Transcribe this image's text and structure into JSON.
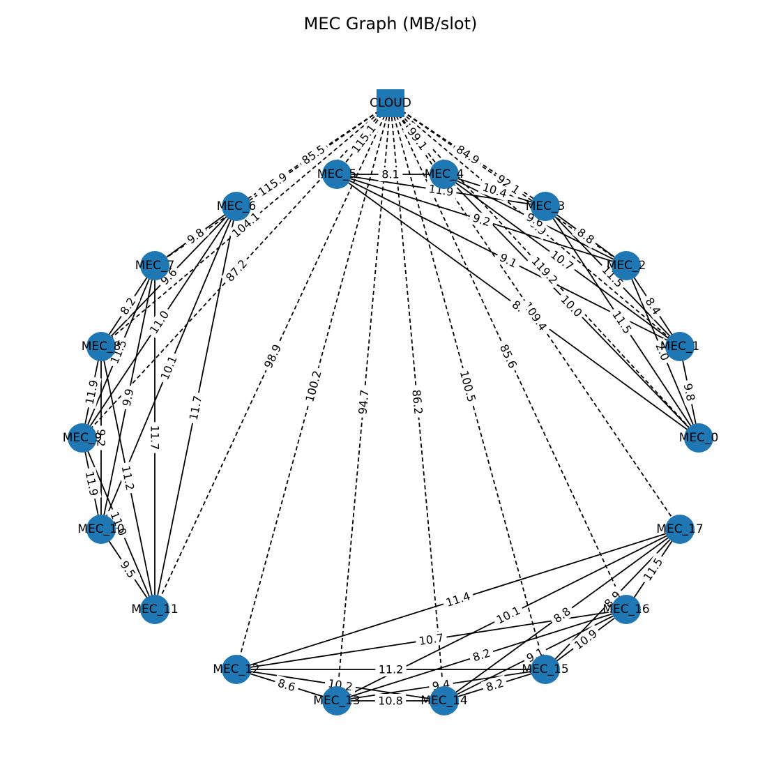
{
  "title": "MEC Graph (MB/slot)",
  "colors": {
    "node": "#1f77b4",
    "edge": "#000000",
    "label_bg": "#ffffff"
  },
  "nodes": [
    {
      "id": "CLOUD",
      "shape": "square"
    },
    {
      "id": "MEC_0",
      "shape": "circle"
    },
    {
      "id": "MEC_1",
      "shape": "circle"
    },
    {
      "id": "MEC_2",
      "shape": "circle"
    },
    {
      "id": "MEC_3",
      "shape": "circle"
    },
    {
      "id": "MEC_4",
      "shape": "circle"
    },
    {
      "id": "MEC_5",
      "shape": "circle"
    },
    {
      "id": "MEC_6",
      "shape": "circle"
    },
    {
      "id": "MEC_7",
      "shape": "circle"
    },
    {
      "id": "MEC_8",
      "shape": "circle"
    },
    {
      "id": "MEC_9",
      "shape": "circle"
    },
    {
      "id": "MEC_10",
      "shape": "circle"
    },
    {
      "id": "MEC_11",
      "shape": "circle"
    },
    {
      "id": "MEC_12",
      "shape": "circle"
    },
    {
      "id": "MEC_13",
      "shape": "circle"
    },
    {
      "id": "MEC_14",
      "shape": "circle"
    },
    {
      "id": "MEC_15",
      "shape": "circle"
    },
    {
      "id": "MEC_16",
      "shape": "circle"
    },
    {
      "id": "MEC_17",
      "shape": "circle"
    }
  ],
  "cloud_edges": [
    {
      "to": "MEC_0",
      "label": "119.2"
    },
    {
      "to": "MEC_1",
      "label": "98.9"
    },
    {
      "to": "MEC_2",
      "label": "92.1"
    },
    {
      "to": "MEC_3",
      "label": "84.9"
    },
    {
      "to": "MEC_4",
      "label": "99.1"
    },
    {
      "to": "MEC_5",
      "label": "115.1"
    },
    {
      "to": "MEC_6",
      "label": "85.5"
    },
    {
      "to": "MEC_7",
      "label": "115.9"
    },
    {
      "to": "MEC_8",
      "label": "104.1"
    },
    {
      "to": "MEC_9",
      "label": "87.2"
    },
    {
      "to": "MEC_11",
      "label": "98.9"
    },
    {
      "to": "MEC_12",
      "label": "100.2"
    },
    {
      "to": "MEC_13",
      "label": "94.7"
    },
    {
      "to": "MEC_14",
      "label": "86.2"
    },
    {
      "to": "MEC_15",
      "label": "100.5"
    },
    {
      "to": "MEC_16",
      "label": "85.6"
    },
    {
      "to": "MEC_17",
      "label": "109.4"
    }
  ],
  "mec_edges": [
    {
      "from": "MEC_5",
      "to": "MEC_4",
      "label": "8.1"
    },
    {
      "from": "MEC_5",
      "to": "MEC_3",
      "label": "11.9"
    },
    {
      "from": "MEC_5",
      "to": "MEC_2",
      "label": "9.2"
    },
    {
      "from": "MEC_5",
      "to": "MEC_1",
      "label": "9.1"
    },
    {
      "from": "MEC_5",
      "to": "MEC_0",
      "label": "8."
    },
    {
      "from": "MEC_4",
      "to": "MEC_3",
      "label": "10.4"
    },
    {
      "from": "MEC_4",
      "to": "MEC_2",
      "label": "9.6"
    },
    {
      "from": "MEC_4",
      "to": "MEC_1",
      "label": "10.7"
    },
    {
      "from": "MEC_4",
      "to": "MEC_0",
      "label": "10.0"
    },
    {
      "from": "MEC_3",
      "to": "MEC_2",
      "label": "8.8"
    },
    {
      "from": "MEC_3",
      "to": "MEC_1",
      "label": "11.5"
    },
    {
      "from": "MEC_3",
      "to": "MEC_0",
      "label": "11.5"
    },
    {
      "from": "MEC_2",
      "to": "MEC_1",
      "label": "8.4"
    },
    {
      "from": "MEC_2",
      "to": "MEC_0",
      "label": "2.0"
    },
    {
      "from": "MEC_1",
      "to": "MEC_0",
      "label": "9.8"
    },
    {
      "from": "MEC_6",
      "to": "MEC_7",
      "label": "9.8"
    },
    {
      "from": "MEC_6",
      "to": "MEC_8",
      "label": "9.6"
    },
    {
      "from": "MEC_6",
      "to": "MEC_9",
      "label": "11.0"
    },
    {
      "from": "MEC_6",
      "to": "MEC_10",
      "label": "10.1"
    },
    {
      "from": "MEC_6",
      "to": "MEC_11",
      "label": "11.7"
    },
    {
      "from": "MEC_7",
      "to": "MEC_8",
      "label": "8.2"
    },
    {
      "from": "MEC_7",
      "to": "MEC_9",
      "label": "11.5"
    },
    {
      "from": "MEC_7",
      "to": "MEC_10",
      "label": "9.9"
    },
    {
      "from": "MEC_7",
      "to": "MEC_11",
      "label": "11.7"
    },
    {
      "from": "MEC_8",
      "to": "MEC_9",
      "label": "11.9"
    },
    {
      "from": "MEC_8",
      "to": "MEC_10",
      "label": "9.2"
    },
    {
      "from": "MEC_8",
      "to": "MEC_11",
      "label": "11.2"
    },
    {
      "from": "MEC_9",
      "to": "MEC_10",
      "label": "11.9"
    },
    {
      "from": "MEC_9",
      "to": "MEC_11",
      "label": "11.0"
    },
    {
      "from": "MEC_10",
      "to": "MEC_11",
      "label": "9.5"
    },
    {
      "from": "MEC_17",
      "to": "MEC_12",
      "label": "11.4"
    },
    {
      "from": "MEC_17",
      "to": "MEC_13",
      "label": "10.1"
    },
    {
      "from": "MEC_17",
      "to": "MEC_14",
      "label": "8.8"
    },
    {
      "from": "MEC_17",
      "to": "MEC_15",
      "label": "8.9"
    },
    {
      "from": "MEC_17",
      "to": "MEC_16",
      "label": "11.5"
    },
    {
      "from": "MEC_16",
      "to": "MEC_12",
      "label": "10.7"
    },
    {
      "from": "MEC_16",
      "to": "MEC_13",
      "label": "8.2"
    },
    {
      "from": "MEC_16",
      "to": "MEC_14",
      "label": "9.1"
    },
    {
      "from": "MEC_16",
      "to": "MEC_15",
      "label": "10.9"
    },
    {
      "from": "MEC_12",
      "to": "MEC_15",
      "label": "11.2"
    },
    {
      "from": "MEC_12",
      "to": "MEC_14",
      "label": "10.2"
    },
    {
      "from": "MEC_12",
      "to": "MEC_13",
      "label": "8.6"
    },
    {
      "from": "MEC_13",
      "to": "MEC_14",
      "label": "10.8"
    },
    {
      "from": "MEC_13",
      "to": "MEC_15",
      "label": "9.4"
    },
    {
      "from": "MEC_14",
      "to": "MEC_15",
      "label": "8.2"
    }
  ]
}
